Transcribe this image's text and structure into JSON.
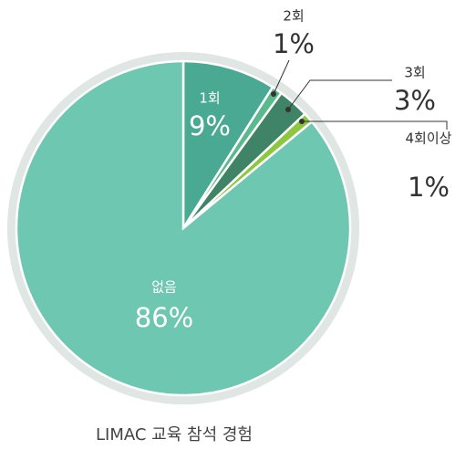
{
  "chart_data": {
    "type": "pie",
    "title": "LIMAC 교육 참석 경험",
    "categories": [
      "1회",
      "2회",
      "3회",
      "4회이상",
      "없음"
    ],
    "values": [
      9,
      1,
      3,
      1,
      86
    ],
    "value_labels": [
      "9%",
      "1%",
      "3%",
      "1%",
      "86%"
    ],
    "colors": [
      "#4aa992",
      "#5cb98c",
      "#3f8466",
      "#8dc63f",
      "#6ec7b0"
    ]
  }
}
